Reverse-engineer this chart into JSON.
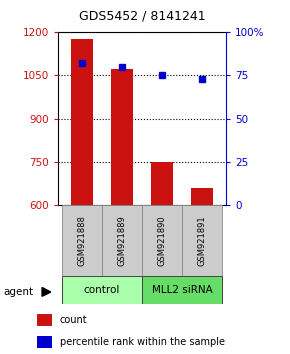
{
  "title": "GDS5452 / 8141241",
  "samples": [
    "GSM921888",
    "GSM921889",
    "GSM921890",
    "GSM921891"
  ],
  "counts": [
    1175,
    1070,
    750,
    660
  ],
  "percentiles": [
    82,
    80,
    75,
    73
  ],
  "ylim_left": [
    600,
    1200
  ],
  "ylim_right": [
    0,
    100
  ],
  "yticks_left": [
    600,
    750,
    900,
    1050,
    1200
  ],
  "yticks_right": [
    0,
    25,
    50,
    75,
    100
  ],
  "yticklabels_right": [
    "0",
    "25",
    "50",
    "75",
    "100%"
  ],
  "bar_color": "#cc1111",
  "dot_color": "#0000cc",
  "groups": [
    {
      "label": "control",
      "samples": [
        0,
        1
      ],
      "color": "#aaffaa"
    },
    {
      "label": "MLL2 siRNA",
      "samples": [
        2,
        3
      ],
      "color": "#66dd66"
    }
  ],
  "legend_count_label": "count",
  "legend_pct_label": "percentile rank within the sample",
  "agent_label": "agent",
  "title_color": "#000000",
  "left_axis_color": "#cc1111",
  "right_axis_color": "#0000cc",
  "background_color": "#ffffff",
  "sample_box_color": "#cccccc",
  "grid_color": "#000000"
}
